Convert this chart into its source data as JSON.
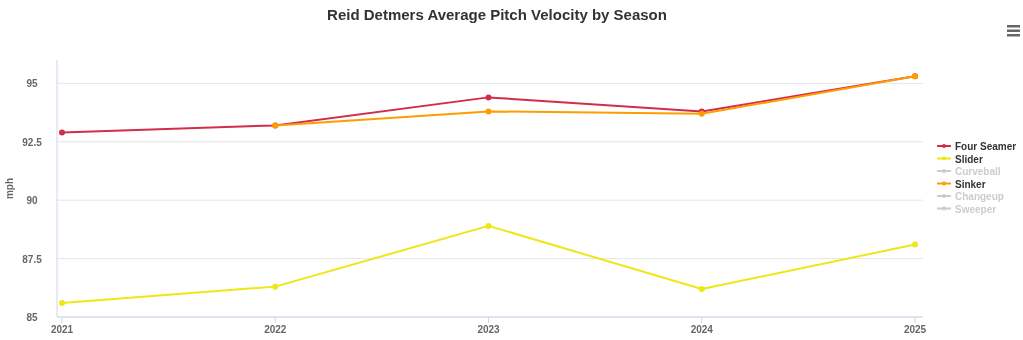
{
  "chart_data": {
    "type": "line",
    "title": "Reid Detmers Average Pitch Velocity by Season",
    "ylabel": "mph",
    "categories": [
      "2021",
      "2022",
      "2023",
      "2024",
      "2025"
    ],
    "series": [
      {
        "name": "Four Seamer",
        "color": "#d22d49",
        "values": [
          92.9,
          93.2,
          94.4,
          93.8,
          95.3
        ]
      },
      {
        "name": "Slider",
        "color": "#eee716",
        "values": [
          85.6,
          86.3,
          88.9,
          86.2,
          88.1
        ]
      },
      {
        "name": "Curveball",
        "color": "#cccccc",
        "values": [
          null,
          null,
          null,
          null,
          null
        ]
      },
      {
        "name": "Sinker",
        "color": "#fe9d00",
        "values": [
          null,
          93.2,
          93.8,
          93.7,
          95.3
        ]
      },
      {
        "name": "Changeup",
        "color": "#cccccc",
        "values": [
          null,
          null,
          null,
          null,
          null
        ]
      },
      {
        "name": "Sweeper",
        "color": "#cccccc",
        "values": [
          null,
          null,
          null,
          null,
          null
        ]
      }
    ],
    "ylim": [
      85,
      96
    ],
    "yticks": [
      85,
      87.5,
      90,
      92.5,
      95
    ],
    "grid": "y",
    "legend": "right",
    "marker": "circle",
    "line_style": "solid"
  }
}
